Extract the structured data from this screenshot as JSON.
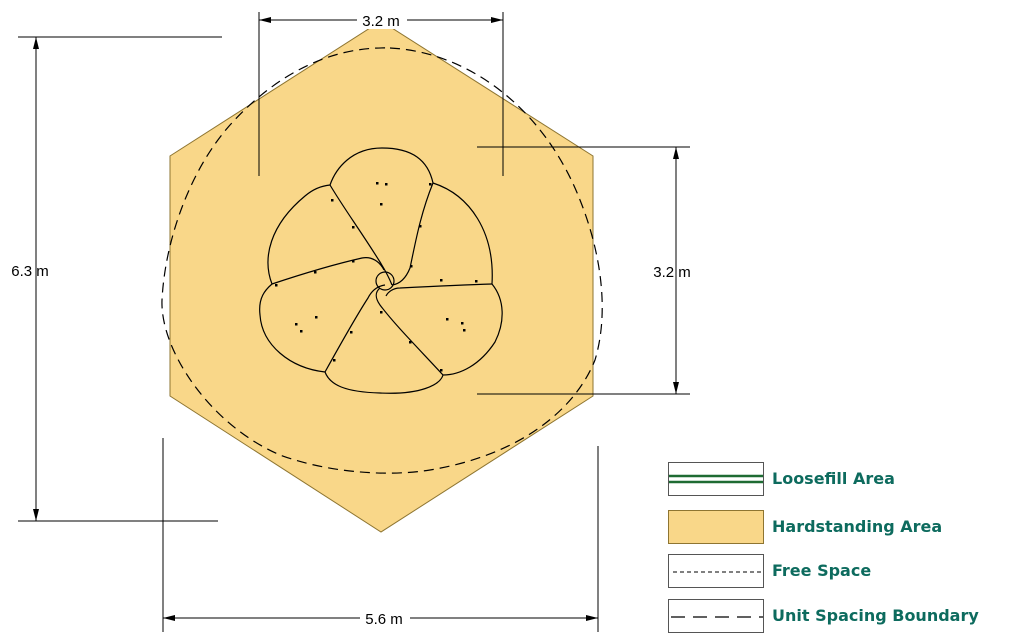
{
  "dimensions": {
    "top_width": "3.2 m",
    "left_height": "6.3 m",
    "right_height": "3.2 m",
    "bottom_width": "5.6 m"
  },
  "legend": {
    "items": [
      {
        "label": "Loosefill Area",
        "kind": "loosefill"
      },
      {
        "label": "Hardstanding Area",
        "kind": "hardstanding"
      },
      {
        "label": "Free Space",
        "kind": "free-space"
      },
      {
        "label": "Unit Spacing Boundary",
        "kind": "unit-spacing"
      }
    ]
  },
  "colors": {
    "hardstanding_fill": "#F9D789",
    "hardstanding_stroke": "#8E7531",
    "loosefill_green": "#1E6B32",
    "legend_text": "#0D6B5E",
    "line": "#000000"
  }
}
